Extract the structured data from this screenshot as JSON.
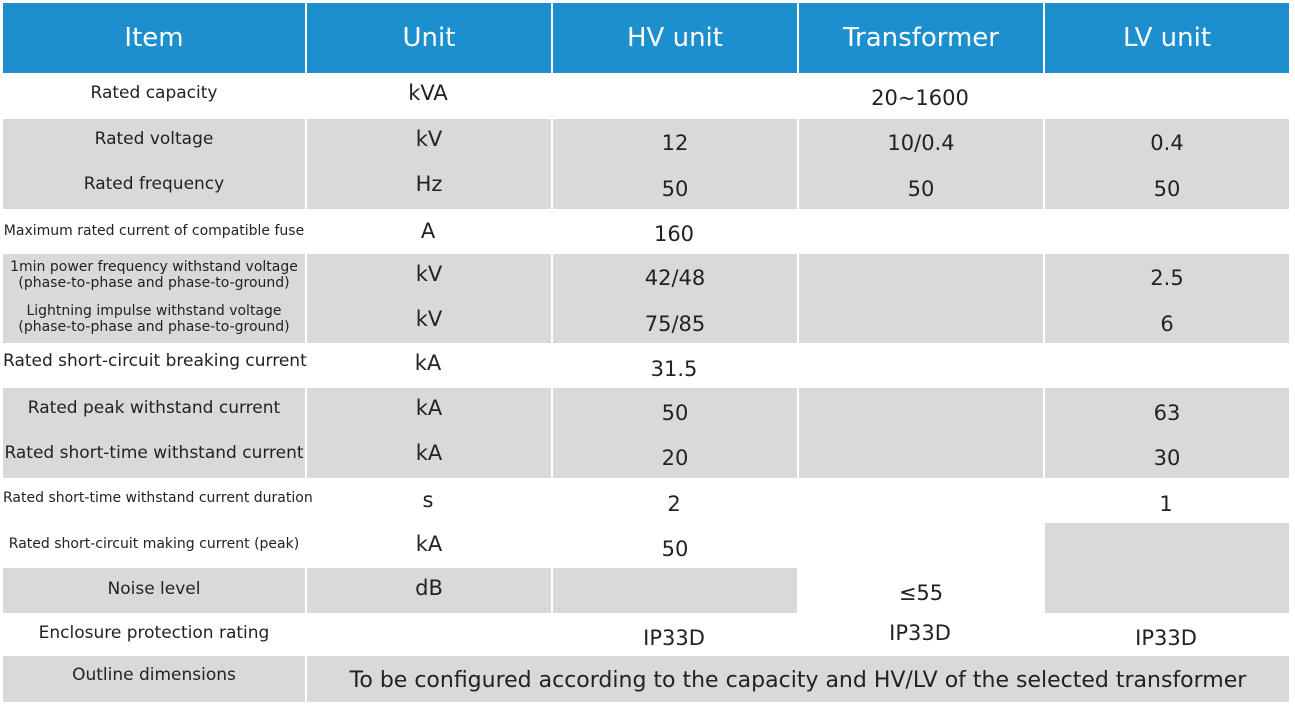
{
  "header": {
    "item": "Item",
    "unit": "Unit",
    "hv": "HV unit",
    "transformer": "Transformer",
    "lv": "LV unit"
  },
  "rows": [
    {
      "item": "Rated capacity",
      "unit": "kVA",
      "merged": "20~1600"
    },
    {
      "item": "Rated voltage",
      "unit": "kV",
      "hv": "12",
      "transformer": "10/0.4",
      "lv": "0.4"
    },
    {
      "item": "Rated frequency",
      "unit": "Hz",
      "hv": "50",
      "transformer": "50",
      "lv": "50"
    },
    {
      "item": "Maximum rated current of compatible fuse",
      "unit": "A",
      "hv": "160"
    },
    {
      "item_line1": "1min power frequency withstand voltage",
      "item_line2": "(phase-to-phase and phase-to-ground)",
      "unit": "kV",
      "hv": "42/48",
      "lv": "2.5"
    },
    {
      "item_line1": "Lightning impulse withstand voltage",
      "item_line2": "(phase-to-phase and phase-to-ground)",
      "unit": "kV",
      "hv": "75/85",
      "lv": "6"
    },
    {
      "item": "Rated short-circuit breaking current",
      "unit": "kA",
      "hv": "31.5"
    },
    {
      "item": "Rated peak withstand current",
      "unit": "kA",
      "hv": "50",
      "lv": "63"
    },
    {
      "item": "Rated short-time withstand current",
      "unit": "kA",
      "hv": "20",
      "lv": "30"
    },
    {
      "item": "Rated short-time withstand current duration",
      "unit": "s",
      "hv": "2",
      "lv": "1"
    },
    {
      "item": "Rated short-circuit making current (peak)",
      "unit": "kA",
      "hv": "50"
    },
    {
      "item": "Noise level",
      "unit": "dB",
      "transformer": "≤55"
    },
    {
      "item": "Enclosure protection rating",
      "hv": "IP33D",
      "transformer": "IP33D",
      "lv": "IP33D"
    },
    {
      "item": "Outline dimensions",
      "merged": "To be configured according to the capacity and HV/LV of the selected transformer"
    }
  ],
  "colors": {
    "header_bg": "#1d8fcf",
    "header_text": "#ffffff",
    "shaded_row": "#d9d9d9",
    "text": "#222222"
  }
}
